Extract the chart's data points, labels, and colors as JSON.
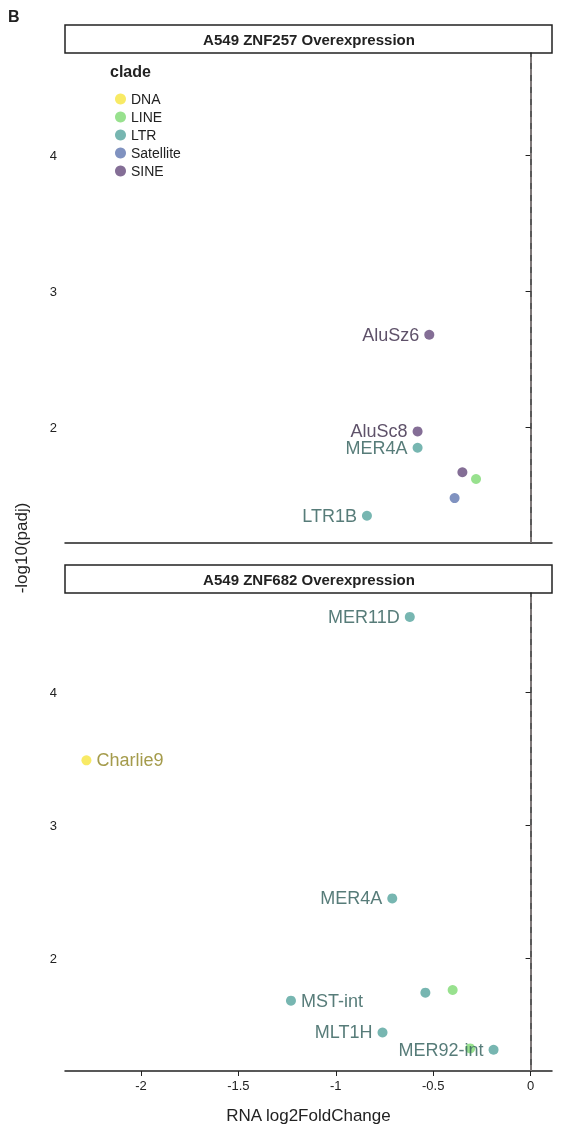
{
  "chart_data": [
    {
      "type": "scatter",
      "title": "A549 ZNF257 Overexpression",
      "ylabel": "-log10(padj)",
      "legend_title": "clade",
      "legend": "top left",
      "tick_labels": "y",
      "grid": false,
      "marker": "circle",
      "annotations": [
        "B"
      ],
      "xlim": [
        -2.39,
        0.11
      ],
      "xticks": [
        -2.0,
        -1.5,
        -1.0,
        -0.5,
        0.0
      ],
      "ylim": [
        1.15,
        4.75
      ],
      "yticks": [
        2,
        3,
        4
      ],
      "ref_lines": [
        {
          "axis": "x",
          "value": 0,
          "color": "#8c8484",
          "line_style": "dashed"
        }
      ],
      "series": [
        {
          "name": "DNA",
          "color": "#f7e64a"
        },
        {
          "name": "LINE",
          "color": "#86dc7a",
          "x": [
            -0.28
          ],
          "values": [
            1.62
          ],
          "value_labels": [
            null
          ]
        },
        {
          "name": "LTR",
          "color": "#5fa9a3",
          "x": [
            -0.58,
            -0.84
          ],
          "values": [
            1.85,
            1.35
          ],
          "value_labels": [
            "MER4A",
            "LTR1B"
          ]
        },
        {
          "name": "Satellite",
          "color": "#6a7fb5",
          "x": [
            -0.39
          ],
          "values": [
            1.48
          ],
          "value_labels": [
            null
          ]
        },
        {
          "name": "SINE",
          "color": "#6e5584",
          "x": [
            -0.52,
            -0.58,
            -0.35
          ],
          "values": [
            2.68,
            1.97,
            1.67
          ],
          "value_labels": [
            "AluSz6",
            "AluSc8",
            null
          ]
        }
      ]
    },
    {
      "type": "scatter",
      "title": "A549 ZNF682 Overexpression",
      "xlabel": "RNA log2FoldChange",
      "legend": false,
      "grid": false,
      "marker": "circle",
      "xlim": [
        -2.39,
        0.11
      ],
      "xticks": [
        -2.0,
        -1.5,
        -1.0,
        -0.5,
        0.0
      ],
      "ylim": [
        1.15,
        4.75
      ],
      "yticks": [
        2,
        3,
        4
      ],
      "ref_lines": [
        {
          "axis": "x",
          "value": 0,
          "color": "#8c8484",
          "line_style": "dashed"
        }
      ],
      "series": [
        {
          "color": "#f7e64a",
          "x": [
            -2.28
          ],
          "values": [
            3.49
          ],
          "value_labels": [
            "Charlie9"
          ]
        },
        {
          "color": "#86dc7a",
          "x": [
            -0.4,
            -0.31
          ],
          "values": [
            1.76,
            1.32
          ],
          "value_labels": [
            null,
            null
          ]
        },
        {
          "color": "#5fa9a3",
          "x": [
            -0.62,
            -0.71,
            -1.23,
            -0.54,
            -0.76,
            -0.19
          ],
          "values": [
            4.57,
            2.45,
            1.68,
            1.74,
            1.44,
            1.31
          ],
          "value_labels": [
            "MER11D",
            "MER4A",
            "MST-int",
            null,
            "MLT1H",
            "MER92-int"
          ]
        }
      ]
    }
  ]
}
